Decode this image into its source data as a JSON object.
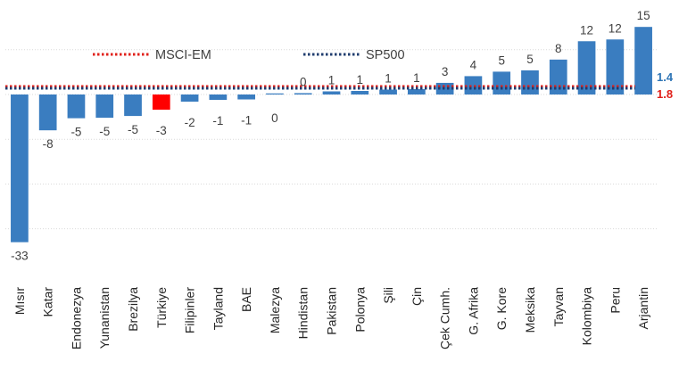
{
  "chart_data": {
    "type": "bar",
    "title": "",
    "xlabel": "",
    "ylabel": "",
    "ylim": [
      -40,
      17
    ],
    "grid": true,
    "categories": [
      "Mısır",
      "Katar",
      "Endonezya",
      "Yunanistan",
      "Brezilya",
      "Türkiye",
      "Filipinler",
      "Tayland",
      "BAE",
      "Malezya",
      "Hindistan",
      "Pakistan",
      "Polonya",
      "Şili",
      "Çin",
      "Çek Cumh.",
      "G. Afrika",
      "G. Kore",
      "Meksika",
      "Tayvan",
      "Kolombiya",
      "Peru",
      "Arjantin"
    ],
    "values": [
      -33,
      -8,
      -5.3,
      -5.2,
      -4.8,
      -3.4,
      -1.6,
      -1.2,
      -1.1,
      0,
      0.3,
      0.7,
      0.8,
      1.1,
      1.2,
      2.6,
      4.1,
      5.1,
      5.4,
      7.8,
      11.9,
      12.3,
      15.1
    ],
    "value_labels": [
      "-33",
      "-8",
      "-5",
      "-5",
      "-5",
      "-3",
      "-2",
      "-1",
      "-1",
      "0",
      "0",
      "1",
      "1",
      "1",
      "1",
      "3",
      "4",
      "5",
      "5",
      "8",
      "12",
      "12",
      "15"
    ],
    "highlight_index": 5,
    "bar_color": "#3a7dc0",
    "highlight_color": "#ff0000",
    "reference_lines": [
      {
        "name": "MSCI-EM",
        "value": 1.8,
        "label": "1.8",
        "color": "#e0201a"
      },
      {
        "name": "SP500",
        "value": 1.4,
        "label": "1.4",
        "color": "#1f3c6e"
      }
    ],
    "legend_placement": "top-left"
  }
}
